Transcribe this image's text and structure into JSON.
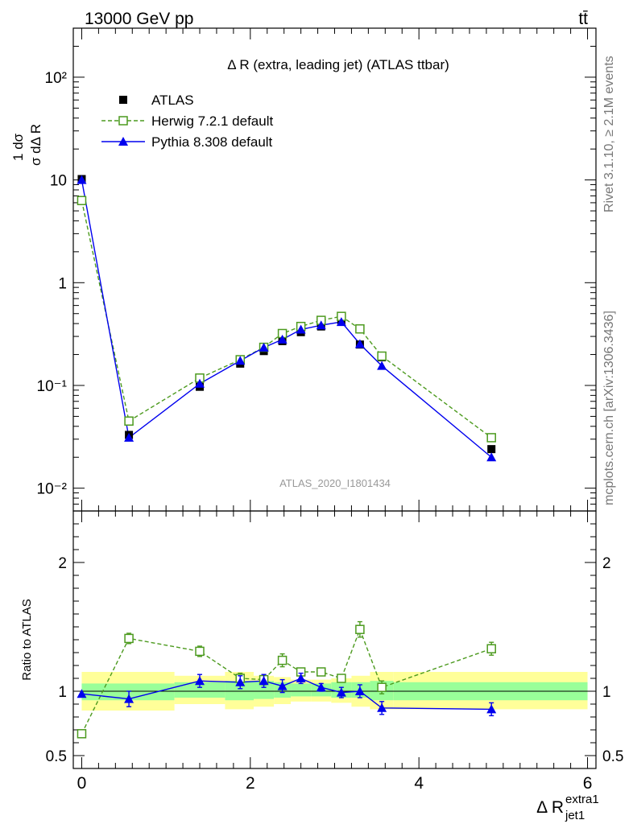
{
  "header": {
    "energy_label": "13000 GeV pp",
    "process_label": "tt̄"
  },
  "side_labels": {
    "rivet": "Rivet 3.1.10, ≥ 2.1M events",
    "mcplots": "mcplots.cern.ch [arXiv:1306.3436]"
  },
  "chart_data": [
    {
      "type": "line",
      "title": "Δ R (extra, leading jet) (ATLAS ttbar)",
      "watermark": "ATLAS_2020_I1801434",
      "xlabel": "Δ R",
      "xlabel_sup": "extra1",
      "xlabel_sub": "jet1",
      "ylabel": "dσ/dΔ R jet1 extra1 · 1/σ",
      "yscale": "log",
      "ylim": [
        0.006,
        300
      ],
      "xlim": [
        -0.1,
        6.1
      ],
      "x_ticks": [
        "0",
        "2",
        "4",
        "6"
      ],
      "y_ticks": [
        "10⁻²",
        "10⁻¹",
        "1",
        "10",
        "10²"
      ],
      "legend_position": "top-left",
      "series": [
        {
          "name": "ATLAS",
          "color": "#000000",
          "marker": "filled-square",
          "x": [
            0.0,
            0.56,
            1.4,
            1.88,
            2.16,
            2.38,
            2.6,
            2.84,
            3.08,
            3.3,
            3.56,
            4.86
          ],
          "y": [
            10.2,
            0.033,
            0.097,
            0.163,
            0.216,
            0.27,
            0.33,
            0.375,
            0.42,
            0.25,
            0.188,
            0.024
          ]
        },
        {
          "name": "Herwig 7.2.1 default",
          "color": "#4c9a1e",
          "marker": "open-square",
          "linestyle": "dashed",
          "x": [
            0.0,
            0.56,
            1.4,
            1.88,
            2.16,
            2.38,
            2.6,
            2.84,
            3.08,
            3.3,
            3.56,
            4.86
          ],
          "y": [
            6.3,
            0.045,
            0.118,
            0.178,
            0.235,
            0.32,
            0.375,
            0.43,
            0.47,
            0.355,
            0.193,
            0.031
          ]
        },
        {
          "name": "Pythia 8.308 default",
          "color": "#0000ee",
          "marker": "filled-triangle",
          "linestyle": "solid",
          "x": [
            0.0,
            0.56,
            1.4,
            1.88,
            2.16,
            2.38,
            2.6,
            2.84,
            3.08,
            3.3,
            3.56,
            4.86
          ],
          "y": [
            10.0,
            0.031,
            0.104,
            0.174,
            0.234,
            0.28,
            0.35,
            0.385,
            0.415,
            0.253,
            0.155,
            0.02
          ]
        }
      ]
    },
    {
      "type": "line",
      "ylabel": "Ratio to ATLAS",
      "ylim": [
        0.4,
        2.4
      ],
      "y_ticks": [
        "0.5",
        "1",
        "2"
      ],
      "bands": [
        {
          "x0": 0.0,
          "x1": 1.1,
          "inner": [
            0.93,
            1.06
          ],
          "outer": [
            0.85,
            1.15
          ]
        },
        {
          "x0": 1.1,
          "x1": 1.7,
          "inner": [
            0.95,
            1.07
          ],
          "outer": [
            0.9,
            1.12
          ]
        },
        {
          "x0": 1.7,
          "x1": 2.04,
          "inner": [
            0.93,
            1.08
          ],
          "outer": [
            0.86,
            1.15
          ]
        },
        {
          "x0": 2.04,
          "x1": 2.28,
          "inner": [
            0.94,
            1.08
          ],
          "outer": [
            0.88,
            1.12
          ]
        },
        {
          "x0": 2.28,
          "x1": 2.48,
          "inner": [
            0.95,
            1.07
          ],
          "outer": [
            0.9,
            1.11
          ]
        },
        {
          "x0": 2.48,
          "x1": 2.72,
          "inner": [
            0.96,
            1.06
          ],
          "outer": [
            0.92,
            1.09
          ]
        },
        {
          "x0": 2.72,
          "x1": 2.96,
          "inner": [
            0.96,
            1.06
          ],
          "outer": [
            0.92,
            1.09
          ]
        },
        {
          "x0": 2.96,
          "x1": 3.2,
          "inner": [
            0.95,
            1.07
          ],
          "outer": [
            0.91,
            1.1
          ]
        },
        {
          "x0": 3.2,
          "x1": 3.42,
          "inner": [
            0.95,
            1.07
          ],
          "outer": [
            0.88,
            1.12
          ]
        },
        {
          "x0": 3.42,
          "x1": 3.7,
          "inner": [
            0.93,
            1.08
          ],
          "outer": [
            0.86,
            1.15
          ]
        },
        {
          "x0": 3.7,
          "x1": 6.0,
          "inner": [
            0.93,
            1.07
          ],
          "outer": [
            0.86,
            1.15
          ]
        }
      ],
      "series": [
        {
          "name": "Herwig 7.2.1 default",
          "color": "#4c9a1e",
          "x": [
            0.0,
            0.56,
            1.4,
            1.88,
            2.16,
            2.38,
            2.6,
            2.84,
            3.08,
            3.3,
            3.56,
            4.86
          ],
          "y": [
            0.67,
            1.41,
            1.31,
            1.1,
            1.09,
            1.24,
            1.15,
            1.15,
            1.1,
            1.48,
            1.03,
            1.33
          ],
          "err": [
            0.0,
            0.04,
            0.04,
            0.04,
            0.04,
            0.05,
            0.03,
            0.03,
            0.03,
            0.06,
            0.05,
            0.05
          ]
        },
        {
          "name": "Pythia 8.308 default",
          "color": "#0000ee",
          "x": [
            0.0,
            0.56,
            1.4,
            1.88,
            2.16,
            2.38,
            2.6,
            2.84,
            3.08,
            3.3,
            3.56,
            4.86
          ],
          "y": [
            0.98,
            0.94,
            1.08,
            1.07,
            1.08,
            1.04,
            1.1,
            1.03,
            0.99,
            1.0,
            0.87,
            0.86
          ],
          "err": [
            0.0,
            0.06,
            0.05,
            0.05,
            0.05,
            0.05,
            0.04,
            0.03,
            0.04,
            0.05,
            0.05,
            0.05
          ]
        }
      ]
    }
  ]
}
